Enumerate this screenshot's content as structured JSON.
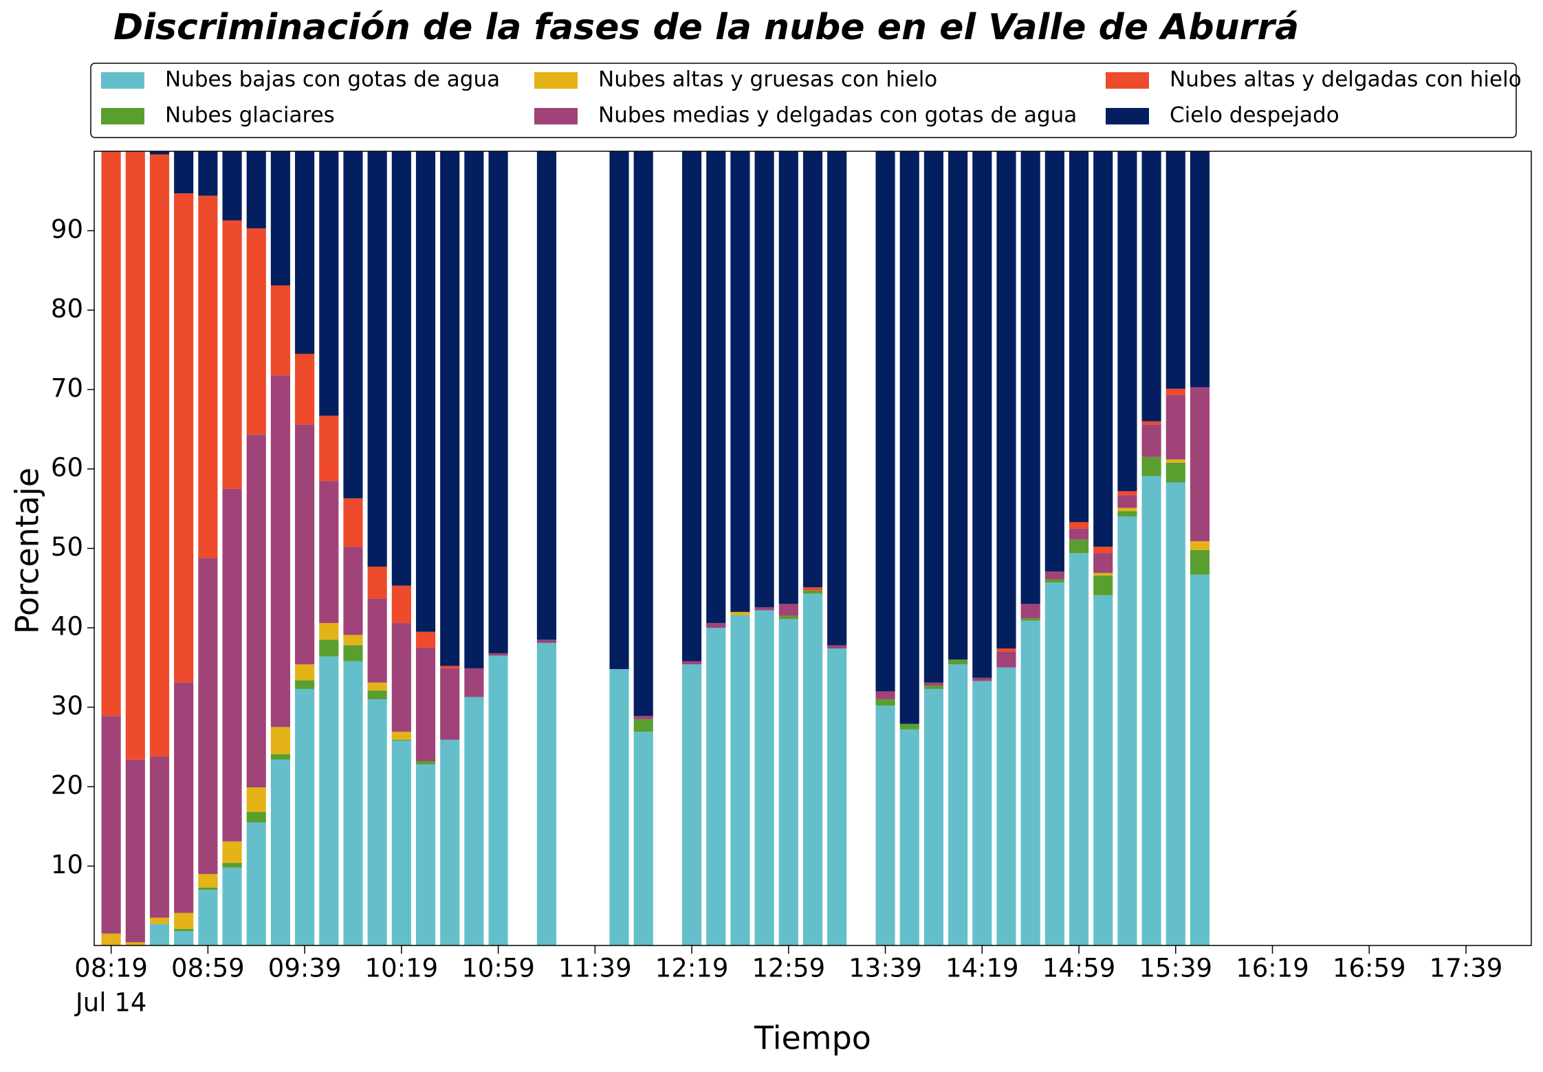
{
  "chart_data": {
    "type": "stacked_bar",
    "title": "Discriminación de la fases de la nube en el Valle de Aburrá",
    "xlabel": "Tiempo",
    "ylabel": "Porcentaje",
    "xtick_date": "Jul 14",
    "x": [
      "08:19",
      "08:29",
      "08:39",
      "08:49",
      "08:59",
      "09:09",
      "09:19",
      "09:29",
      "09:39",
      "09:49",
      "09:59",
      "10:09",
      "10:19",
      "10:29",
      "10:39",
      "10:49",
      "10:59",
      "11:19",
      "11:49",
      "11:59",
      "12:19",
      "12:29",
      "12:39",
      "12:49",
      "12:59",
      "13:09",
      "13:19",
      "13:39",
      "13:49",
      "13:59",
      "14:09",
      "14:19",
      "14:29",
      "14:39",
      "14:49",
      "14:59",
      "15:09",
      "15:19",
      "15:29",
      "15:39",
      "15:49"
    ],
    "xlim": [
      "08:12",
      "18:06"
    ],
    "xticks": [
      "08:19",
      "08:59",
      "09:39",
      "10:19",
      "10:59",
      "11:39",
      "12:19",
      "12:59",
      "13:39",
      "14:19",
      "14:59",
      "15:39",
      "16:19",
      "16:59",
      "17:39"
    ],
    "ylim": [
      0,
      100
    ],
    "yticks": [
      10,
      20,
      30,
      40,
      50,
      60,
      70,
      80,
      90
    ],
    "grid": false,
    "legend": "upper center",
    "series": [
      {
        "name": "Nubes bajas con gotas de agua",
        "color": "#64bfcb",
        "values": [
          0,
          0,
          2.7,
          1.8,
          7.0,
          9.8,
          15.5,
          23.4,
          32.3,
          36.4,
          35.8,
          31.0,
          25.8,
          22.8,
          25.9,
          31.3,
          36.5,
          38.1,
          34.8,
          26.9,
          35.4,
          40.0,
          41.6,
          42.2,
          41.1,
          44.3,
          37.4,
          30.2,
          27.2,
          32.3,
          35.4,
          33.3,
          35.0,
          40.9,
          45.7,
          49.4,
          44.1,
          54.0,
          59.1,
          58.3,
          46.7
        ]
      },
      {
        "name": "Nubes glaciares",
        "color": "#5a9e2f",
        "values": [
          0,
          0,
          0,
          0.3,
          0.3,
          0.6,
          1.3,
          0.7,
          1.1,
          2.1,
          2.0,
          1.1,
          0.1,
          0.4,
          0,
          0,
          0,
          0,
          0,
          1.6,
          0,
          0,
          0,
          0,
          0.4,
          0.4,
          0,
          0.8,
          0.7,
          0.4,
          0.6,
          0,
          0,
          0.3,
          0.4,
          1.7,
          2.5,
          0.7,
          2.4,
          2.5,
          3.1
        ]
      },
      {
        "name": "Nubes altas y gruesas con hielo",
        "color": "#e3b317",
        "values": [
          1.5,
          0.4,
          0.8,
          2.0,
          1.7,
          2.7,
          3.1,
          3.4,
          2.0,
          2.1,
          1.3,
          1.0,
          1.0,
          0,
          0,
          0,
          0,
          0,
          0,
          0,
          0,
          0,
          0.4,
          0,
          0,
          0,
          0,
          0,
          0,
          0,
          0,
          0,
          0,
          0,
          0,
          0,
          0.3,
          0.4,
          0,
          0.4,
          1.1
        ]
      },
      {
        "name": "Nubes medias y delgadas con gotas de agua",
        "color": "#a04378",
        "values": [
          27.4,
          23.0,
          20.3,
          29.0,
          39.8,
          44.4,
          44.4,
          44.3,
          30.2,
          17.9,
          11.1,
          10.6,
          13.7,
          14.3,
          9.0,
          3.6,
          0.3,
          0.4,
          0,
          0.4,
          0.4,
          0.6,
          0,
          0.4,
          1.5,
          0,
          0.4,
          1.0,
          0,
          0.4,
          0,
          0.4,
          2.0,
          1.8,
          1.0,
          1.4,
          2.5,
          1.6,
          4.1,
          8.1,
          19.4
        ]
      },
      {
        "name": "Nubes altas y delgadas con hielo",
        "color": "#ee4a2c",
        "values": [
          71.1,
          76.6,
          75.8,
          61.6,
          45.6,
          33.8,
          26.0,
          11.3,
          8.9,
          8.2,
          6.1,
          4.0,
          4.7,
          2.0,
          0.3,
          0,
          0,
          0,
          0,
          0,
          0,
          0,
          0,
          0,
          0,
          0.4,
          0,
          0,
          0,
          0,
          0,
          0,
          0.4,
          0,
          0,
          0.8,
          0.8,
          0.5,
          0.4,
          0.8,
          0
        ]
      },
      {
        "name": "Cielo despejado",
        "color": "#031f5f",
        "values": [
          0,
          0,
          0.4,
          5.3,
          5.6,
          8.7,
          9.7,
          16.9,
          25.5,
          33.3,
          43.7,
          52.3,
          54.7,
          60.5,
          64.8,
          65.1,
          63.2,
          61.5,
          65.2,
          71.1,
          64.2,
          59.4,
          58.0,
          57.4,
          57.0,
          54.9,
          62.2,
          68.0,
          72.1,
          66.9,
          64.0,
          66.3,
          62.6,
          57.0,
          52.9,
          46.7,
          49.8,
          42.8,
          34.0,
          29.9,
          29.7
        ]
      }
    ]
  }
}
